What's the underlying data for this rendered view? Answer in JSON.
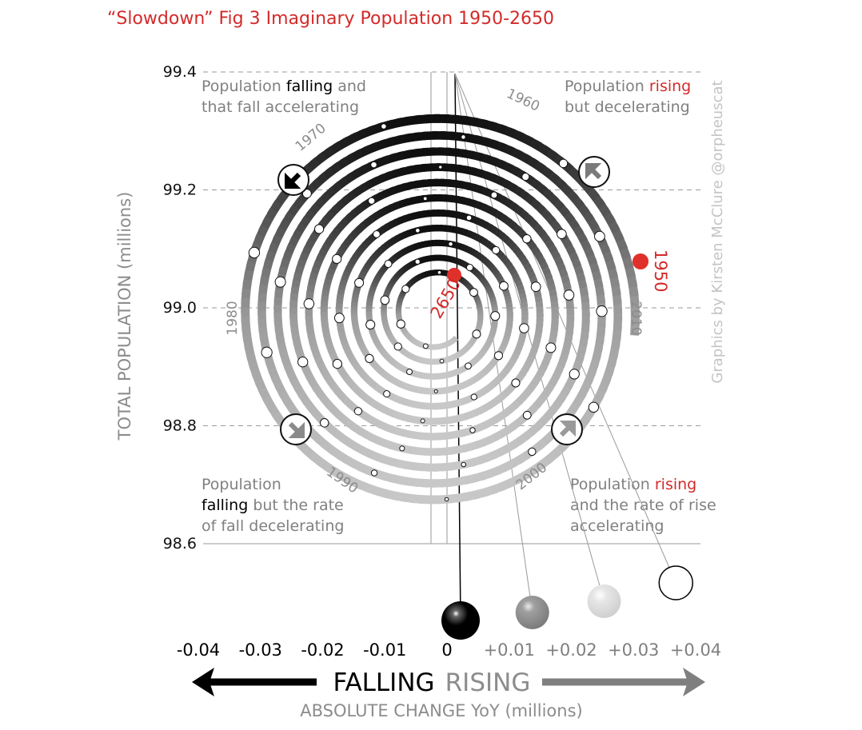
{
  "title": "“Slowdown” Fig 3 Imaginary Population 1950-2650",
  "credit": "Graphics by Kirsten McClure @orpheuscat",
  "colors": {
    "title": "#d42a2a",
    "highlight": "#d42a2a",
    "falling": "#000000",
    "rising": "#8c8c8c",
    "grid": "#999999"
  },
  "quadrants": {
    "top_left": {
      "lines": [
        [
          "Population ",
          "falling",
          " and"
        ],
        [
          "that fall accelerating"
        ]
      ],
      "highlight": "falling",
      "highlight_color": "#000000"
    },
    "top_right": {
      "lines": [
        [
          "Population ",
          "rising"
        ],
        [
          "but decelerating"
        ]
      ],
      "highlight": "rising",
      "highlight_color": "#d42a2a"
    },
    "bottom_left": {
      "lines": [
        [
          "Population"
        ],
        [
          "falling",
          " but the rate"
        ],
        [
          "of  fall decelerating"
        ]
      ],
      "highlight": "falling",
      "highlight_color": "#000000"
    },
    "bottom_right": {
      "lines": [
        [
          "Population ",
          "rising"
        ],
        [
          "and the rate of rise"
        ],
        [
          "accelerating"
        ]
      ],
      "highlight": "rising",
      "highlight_color": "#d42a2a"
    }
  },
  "arrow_labels": {
    "falling": "FALLING",
    "rising": "RISING"
  },
  "chart_data": {
    "type": "scatter",
    "title": "“Slowdown” Fig 3 Imaginary Population 1950-2650",
    "xlabel": "ABSOLUTE CHANGE YoY (millions)",
    "ylabel": "TOTAL POPULATION (millions)",
    "xlim": [
      -0.04,
      0.04
    ],
    "ylim": [
      98.6,
      99.4
    ],
    "x_ticks": [
      "-0.04",
      "-0.03",
      "-0.02",
      "-0.01",
      "0",
      "+0.01",
      "+0.02",
      "+0.03",
      "+0.04"
    ],
    "y_ticks": [
      "98.6",
      "98.8",
      "99.0",
      "99.2",
      "99.4"
    ],
    "grid": "horizontal dashed",
    "start": {
      "year": "1950",
      "x": 0.029,
      "y": 99.08
    },
    "end": {
      "year": "2650",
      "x": 0.0,
      "y": 99.06
    },
    "year_labels": [
      {
        "year": "1960",
        "x": 0.011,
        "y": 99.35
      },
      {
        "year": "1970",
        "x": -0.023,
        "y": 99.29
      },
      {
        "year": "1980",
        "x": -0.033,
        "y": 99.0
      },
      {
        "year": "1990",
        "x": -0.016,
        "y": 98.7
      },
      {
        "year": "2000",
        "x": 0.011,
        "y": 98.72
      },
      {
        "year": "2010",
        "x": 0.029,
        "y": 98.98
      }
    ],
    "legend_balls": [
      {
        "x": 0.0,
        "shade": "#000000"
      },
      {
        "x": 0.01,
        "shade": "#8c8c8c"
      },
      {
        "x": 0.02,
        "shade": "#d9d9d9"
      },
      {
        "x": 0.03,
        "shade": "#ffffff"
      }
    ]
  }
}
